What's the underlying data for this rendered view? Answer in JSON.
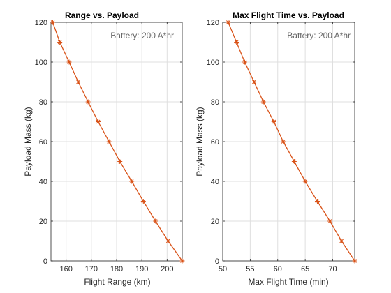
{
  "chart_data": [
    {
      "type": "line",
      "title": "Range vs. Payload",
      "xlabel": "Flight Range (km)",
      "ylabel": "Payload Mass (kg)",
      "annotation": "Battery: 200 A*hr",
      "xlim": [
        154,
        206
      ],
      "ylim": [
        0,
        120
      ],
      "xticks": [
        160,
        170,
        180,
        190,
        200
      ],
      "yticks": [
        0,
        20,
        40,
        60,
        80,
        100,
        120
      ],
      "grid": true,
      "color": "#d95319",
      "marker": "asterisk",
      "series": [
        {
          "x": [
            206.0,
            200.4,
            195.4,
            190.6,
            186.0,
            181.3,
            177.0,
            172.7,
            168.7,
            164.8,
            161.2,
            157.5,
            154.7
          ],
          "y": [
            0,
            10,
            20,
            30,
            40,
            50,
            60,
            70,
            80,
            90,
            100,
            110,
            120
          ]
        }
      ]
    },
    {
      "type": "line",
      "title": "Max Flight Time vs. Payload",
      "xlabel": "Max Flight Time (min)",
      "ylabel": "Payload Mass (kg)",
      "annotation": "Battery: 200 A*hr",
      "xlim": [
        50,
        74
      ],
      "ylim": [
        0,
        120
      ],
      "xticks": [
        50,
        55,
        60,
        65,
        70
      ],
      "yticks": [
        0,
        20,
        40,
        60,
        80,
        100,
        120
      ],
      "grid": true,
      "color": "#d95319",
      "marker": "asterisk",
      "series": [
        {
          "x": [
            74.0,
            71.6,
            69.5,
            67.2,
            65.0,
            63.0,
            61.0,
            59.3,
            57.4,
            55.7,
            54.0,
            52.5,
            51.0
          ],
          "y": [
            0,
            10,
            20,
            30,
            40,
            50,
            60,
            70,
            80,
            90,
            100,
            110,
            120
          ]
        }
      ]
    }
  ]
}
